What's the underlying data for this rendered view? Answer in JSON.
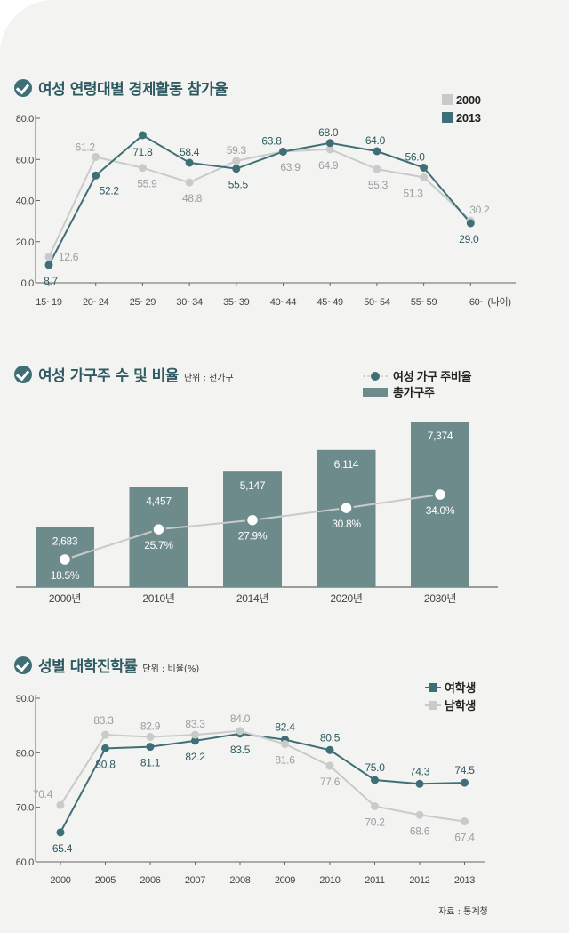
{
  "charts": {
    "c1": {
      "title": "여성 연령대별 경제활동 참가율",
      "unit": ""
    },
    "c2": {
      "title": "여성 가구주 수 및 비율",
      "unit": "단위 : 천가구"
    },
    "c3": {
      "title": "성별 대학진학률",
      "unit": "단위 : 비율(%)"
    }
  },
  "source": "자료 : 통계청",
  "chart_data": [
    {
      "type": "line",
      "title": "여성 연령대별 경제활동 참가율",
      "categories": [
        "15~19",
        "20~24",
        "25~29",
        "30~34",
        "35~39",
        "40~44",
        "45~49",
        "50~54",
        "55~59",
        "60~ (나이)"
      ],
      "series": [
        {
          "name": "2000",
          "color": "#c9cbca",
          "values": [
            12.6,
            61.2,
            55.9,
            48.8,
            59.3,
            63.9,
            64.9,
            55.3,
            51.3,
            30.2
          ],
          "labels": [
            "12.6",
            "61.2",
            "55.9",
            "48.8",
            "59.3",
            "63.9",
            "64.9",
            "55.3",
            "51.3",
            "30.2"
          ]
        },
        {
          "name": "2013",
          "color": "#3f6f76",
          "values": [
            8.7,
            52.2,
            71.8,
            58.4,
            55.5,
            63.8,
            68.0,
            64.0,
            56.0,
            29.0
          ],
          "labels": [
            "8.7",
            "52.2",
            "71.8",
            "58.4",
            "55.5",
            "63.8",
            "68.0",
            "64.0",
            "56.0",
            "29.0"
          ]
        }
      ],
      "yticks": [
        "0.0",
        "20.0",
        "40.0",
        "60.0",
        "80.0"
      ],
      "ylim": [
        0,
        80
      ],
      "legend": "top-right"
    },
    {
      "type": "bar",
      "title": "여성 가구주 수 및 비율",
      "unit": "단위 : 천가구",
      "categories": [
        "2000년",
        "2010년",
        "2014년",
        "2020년",
        "2030년"
      ],
      "series": [
        {
          "name": "총가구주",
          "color": "#6e8b8b",
          "values": [
            2683,
            4457,
            5147,
            6114,
            7374
          ],
          "labels": [
            "2,683",
            "4,457",
            "5,147",
            "6,114",
            "7,374"
          ]
        },
        {
          "name": "여성 가구 주비율",
          "color": "#c9cbca",
          "values": [
            18.5,
            25.7,
            27.9,
            30.8,
            34.0
          ],
          "labels": [
            "18.5%",
            "25.7%",
            "27.9%",
            "30.8%",
            "34.0%"
          ]
        }
      ],
      "legend": "top-right"
    },
    {
      "type": "line",
      "title": "성별 대학진학률",
      "unit": "단위 : 비율(%)",
      "categories": [
        "2000",
        "2005",
        "2006",
        "2007",
        "2008",
        "2009",
        "2010",
        "2011",
        "2012",
        "2013"
      ],
      "series": [
        {
          "name": "여학생",
          "color": "#3f6f76",
          "values": [
            65.4,
            80.8,
            81.1,
            82.2,
            83.5,
            82.4,
            80.5,
            75.0,
            74.3,
            74.5
          ],
          "labels": [
            "65.4",
            "80.8",
            "81.1",
            "82.2",
            "83.5",
            "82.4",
            "80.5",
            "75.0",
            "74.3",
            "74.5"
          ]
        },
        {
          "name": "남학생",
          "color": "#c9cbca",
          "values": [
            70.4,
            83.3,
            82.9,
            83.3,
            84.0,
            81.6,
            77.6,
            70.2,
            68.6,
            67.4
          ],
          "labels": [
            "70.4",
            "83.3",
            "82.9",
            "83.3",
            "84.0",
            "81.6",
            "77.6",
            "70.2",
            "68.6",
            "67.4"
          ]
        }
      ],
      "yticks": [
        "60.0",
        "70.0",
        "80.0",
        "90.0"
      ],
      "ylim": [
        60,
        90
      ],
      "legend": "top-right"
    }
  ]
}
